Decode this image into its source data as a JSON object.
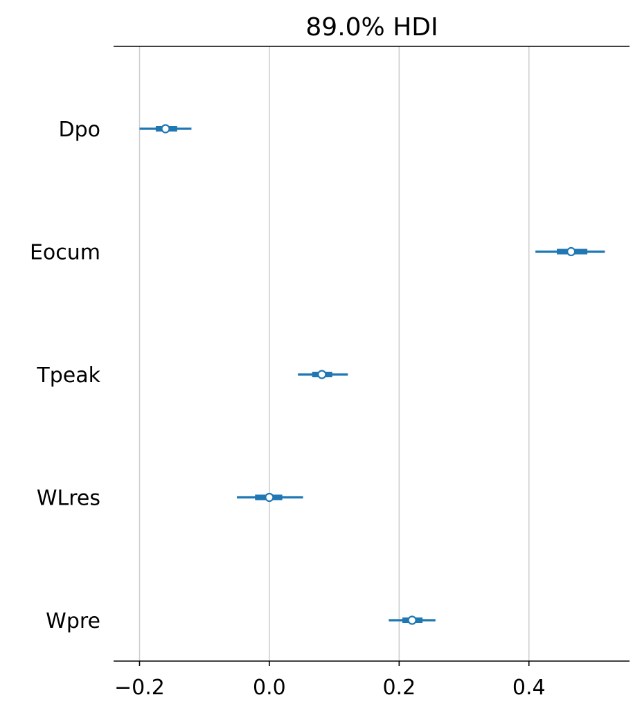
{
  "chart_data": {
    "type": "forest",
    "title": "89.0% HDI",
    "xlabel": "",
    "ylabel": "",
    "xlim": [
      -0.24,
      0.555
    ],
    "xticks": [
      -0.2,
      0.0,
      0.2,
      0.4
    ],
    "xtick_labels": [
      "−0.2",
      "0.0",
      "0.2",
      "0.4"
    ],
    "grid": "vertical",
    "color": "#1f77b4",
    "variables": [
      {
        "name": "Dpo",
        "point": -0.16,
        "hdi_low": -0.2,
        "hdi_high": -0.12,
        "iqr_low": -0.175,
        "iqr_high": -0.142
      },
      {
        "name": "Eocum",
        "point": 0.465,
        "hdi_low": 0.41,
        "hdi_high": 0.517,
        "iqr_low": 0.443,
        "iqr_high": 0.49
      },
      {
        "name": "Tpeak",
        "point": 0.081,
        "hdi_low": 0.044,
        "hdi_high": 0.121,
        "iqr_low": 0.066,
        "iqr_high": 0.097
      },
      {
        "name": "WLres",
        "point": 0.0,
        "hdi_low": -0.05,
        "hdi_high": 0.052,
        "iqr_low": -0.022,
        "iqr_high": 0.02
      },
      {
        "name": "Wpre",
        "point": 0.22,
        "hdi_low": 0.184,
        "hdi_high": 0.256,
        "iqr_low": 0.205,
        "iqr_high": 0.236
      }
    ]
  }
}
